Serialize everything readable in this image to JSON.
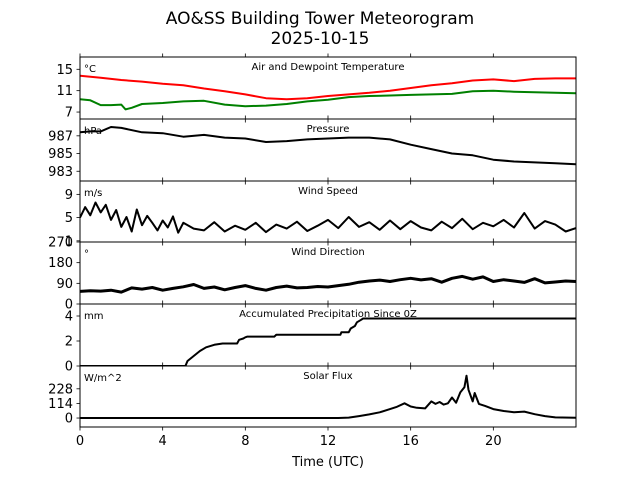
{
  "chart_data": {
    "type": "line",
    "title": "AO&SS Building Tower Meteorogram",
    "subtitle": "2025-10-15",
    "xlabel": "Time (UTC)",
    "xlim": [
      0,
      24
    ],
    "x_ticks": [
      0,
      4,
      8,
      12,
      16,
      20
    ],
    "x_tick_labels": [
      "0",
      "4",
      "8",
      "12",
      "16",
      "20"
    ],
    "grid": false,
    "panels": [
      {
        "id": "temperature",
        "title": "Air and Dewpoint Temperature",
        "unit_label": "°C",
        "ylim": [
          5.7,
          17.3
        ],
        "y_ticks": [
          7,
          11,
          15
        ],
        "y_tick_labels": [
          "7",
          "11",
          "15"
        ],
        "series": [
          {
            "name": "Air Temperature",
            "color": "#ff0000",
            "x": [
              0,
              1,
              2,
              3,
              4,
              5,
              6,
              7,
              8,
              9,
              10,
              11,
              12,
              13,
              14,
              15,
              16,
              17,
              18,
              19,
              20,
              21,
              22,
              23,
              24
            ],
            "values": [
              13.8,
              13.4,
              13.0,
              12.7,
              12.3,
              12.0,
              11.4,
              10.9,
              10.3,
              9.6,
              9.4,
              9.6,
              10.0,
              10.3,
              10.6,
              11.0,
              11.5,
              12.0,
              12.4,
              12.9,
              13.1,
              12.8,
              13.2,
              13.3,
              13.3
            ]
          },
          {
            "name": "Dewpoint Temperature",
            "color": "#008000",
            "x": [
              0,
              0.5,
              1,
              1.5,
              2,
              2.2,
              2.5,
              3,
              4,
              5,
              6,
              7,
              8,
              9,
              10,
              11,
              12,
              13,
              14,
              15,
              16,
              17,
              18,
              19,
              20,
              21,
              22,
              23,
              24
            ],
            "values": [
              9.4,
              9.2,
              8.3,
              8.3,
              8.4,
              7.5,
              7.8,
              8.5,
              8.7,
              9.0,
              9.1,
              8.4,
              8.1,
              8.2,
              8.5,
              9.0,
              9.3,
              9.8,
              10.0,
              10.1,
              10.2,
              10.3,
              10.4,
              10.9,
              11.0,
              10.8,
              10.7,
              10.6,
              10.5
            ]
          }
        ]
      },
      {
        "id": "pressure",
        "title": "Pressure",
        "unit_label": "hPa",
        "ylim": [
          981.9,
          988.9
        ],
        "y_ticks": [
          983,
          985,
          987
        ],
        "y_tick_labels": [
          "983",
          "985",
          "987"
        ],
        "series": [
          {
            "name": "Pressure",
            "color": "#000000",
            "x": [
              0,
              0.5,
              1,
              1.5,
              2,
              3,
              4,
              5,
              6,
              7,
              8,
              9,
              10,
              11,
              12,
              13,
              14,
              15,
              16,
              17,
              18,
              19,
              20,
              21,
              22,
              23,
              24
            ],
            "values": [
              987.4,
              987.5,
              987.5,
              988.0,
              987.9,
              987.4,
              987.3,
              986.9,
              987.1,
              986.8,
              986.7,
              986.3,
              986.4,
              986.6,
              986.7,
              986.8,
              986.8,
              986.6,
              986.0,
              985.5,
              985.0,
              984.8,
              984.3,
              984.1,
              984.0,
              983.9,
              983.8
            ]
          }
        ]
      },
      {
        "id": "wind-speed",
        "title": "Wind Speed",
        "unit_label": "m/s",
        "ylim": [
          0.8,
          11.3
        ],
        "y_ticks": [
          1,
          5,
          9
        ],
        "y_tick_labels": [
          "1",
          "5",
          "9"
        ],
        "series": [
          {
            "name": "Wind Speed",
            "color": "#000000",
            "x": [
              0,
              0.25,
              0.5,
              0.75,
              1,
              1.25,
              1.5,
              1.75,
              2,
              2.25,
              2.5,
              2.75,
              3,
              3.25,
              3.5,
              3.75,
              4,
              4.25,
              4.5,
              4.75,
              5,
              5.5,
              6,
              6.5,
              7,
              7.5,
              8,
              8.5,
              9,
              9.5,
              10,
              10.5,
              11,
              11.5,
              12,
              12.5,
              13,
              13.5,
              14,
              14.5,
              15,
              15.5,
              16,
              16.5,
              17,
              17.5,
              18,
              18.5,
              19,
              19.5,
              20,
              20.5,
              21,
              21.5,
              22,
              22.5,
              23,
              23.5,
              24
            ],
            "values": [
              5.0,
              6.8,
              5.4,
              7.6,
              5.9,
              7.2,
              4.6,
              6.3,
              3.4,
              5.1,
              2.6,
              6.4,
              3.7,
              5.3,
              4.1,
              2.8,
              4.5,
              3.3,
              5.2,
              2.4,
              4.1,
              3.1,
              2.8,
              4.2,
              2.6,
              3.6,
              2.9,
              4.1,
              2.5,
              3.8,
              3.1,
              4.3,
              2.7,
              3.6,
              4.6,
              3.2,
              5.1,
              3.4,
              4.2,
              2.9,
              4.5,
              3.0,
              4.4,
              3.3,
              2.8,
              4.3,
              3.2,
              4.8,
              3.0,
              4.1,
              3.5,
              4.6,
              3.3,
              5.8,
              3.1,
              4.4,
              3.8,
              2.6,
              3.2
            ]
          }
        ]
      },
      {
        "id": "wind-direction",
        "title": "Wind Direction",
        "unit_label": "°",
        "ylim": [
          0,
          270
        ],
        "y_ticks": [
          0,
          90,
          180,
          270
        ],
        "y_tick_labels": [
          "0",
          "90",
          "180",
          "270"
        ],
        "series": [
          {
            "name": "Wind Direction",
            "color": "#000000",
            "x": [
              0,
              0.5,
              1,
              1.5,
              2,
              2.5,
              3,
              3.5,
              4,
              4.5,
              5,
              5.5,
              6,
              6.5,
              7,
              7.5,
              8,
              8.5,
              9,
              9.5,
              10,
              10.5,
              11,
              11.5,
              12,
              12.5,
              13,
              13.5,
              14,
              14.5,
              15,
              15.5,
              16,
              16.5,
              17,
              17.5,
              18,
              18.5,
              19,
              19.5,
              20,
              20.5,
              21,
              21.5,
              22,
              22.5,
              23,
              23.5,
              24
            ],
            "values": [
              55,
              58,
              56,
              60,
              52,
              70,
              65,
              72,
              60,
              68,
              75,
              85,
              68,
              74,
              62,
              72,
              80,
              68,
              60,
              72,
              78,
              70,
              72,
              76,
              74,
              80,
              86,
              95,
              100,
              104,
              98,
              106,
              112,
              105,
              110,
              95,
              112,
              120,
              108,
              118,
              98,
              106,
              100,
              94,
              110,
              92,
              96,
              100,
              98
            ]
          }
        ]
      },
      {
        "id": "precipitation",
        "title": "Accumulated Precipitation Since 0Z",
        "unit_label": "mm",
        "ylim": [
          0,
          4.96
        ],
        "y_ticks": [
          0,
          2,
          4
        ],
        "y_tick_labels": [
          "0",
          "2",
          "4"
        ],
        "series": [
          {
            "name": "Accumulated Precipitation",
            "color": "#000000",
            "x": [
              0,
              5.1,
              5.2,
              5.5,
              5.8,
              6.1,
              6.5,
              6.9,
              7.6,
              7.7,
              7.9,
              8.0,
              8.1,
              9.4,
              9.5,
              12.6,
              12.65,
              13.0,
              13.1,
              13.3,
              13.4,
              13.6,
              13.7,
              24
            ],
            "values": [
              0.0,
              0.0,
              0.4,
              0.8,
              1.2,
              1.5,
              1.7,
              1.8,
              1.8,
              2.1,
              2.2,
              2.3,
              2.35,
              2.35,
              2.5,
              2.5,
              2.7,
              2.7,
              3.0,
              3.2,
              3.5,
              3.7,
              3.8,
              3.8
            ]
          }
        ]
      },
      {
        "id": "solar-flux",
        "title": "Solar Flux",
        "unit_label": "W/m^2",
        "ylim": [
          -70,
          406
        ],
        "y_ticks": [
          0,
          114,
          228
        ],
        "y_tick_labels": [
          "0",
          "114",
          "228"
        ],
        "series": [
          {
            "name": "Solar Flux",
            "color": "#000000",
            "x": [
              0,
              12.5,
              13,
              13.5,
              14,
              14.5,
              15,
              15.3,
              15.7,
              16,
              16.3,
              16.7,
              17,
              17.2,
              17.4,
              17.6,
              17.8,
              18,
              18.2,
              18.4,
              18.6,
              18.7,
              18.8,
              19,
              19.1,
              19.3,
              19.6,
              20,
              20.5,
              21,
              21.5,
              22,
              22.5,
              23,
              24
            ],
            "values": [
              0,
              0,
              3,
              15,
              28,
              45,
              70,
              85,
              115,
              90,
              80,
              75,
              130,
              110,
              125,
              105,
              115,
              160,
              120,
              200,
              240,
              330,
              220,
              130,
              195,
              110,
              95,
              70,
              55,
              45,
              50,
              30,
              15,
              5,
              2
            ]
          }
        ]
      }
    ]
  }
}
